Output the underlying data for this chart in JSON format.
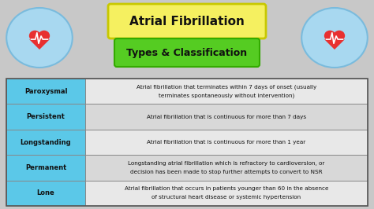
{
  "title": "Atrial Fibrillation",
  "subtitle": "Types & Classification",
  "title_box_color": "#F5F060",
  "title_box_edge": "#C8C800",
  "subtitle_box_color": "#55CC22",
  "subtitle_box_edge": "#33AA00",
  "bg_color": "#C8C8C8",
  "header_col_color": "#5BC8E8",
  "right_col_colors": [
    "#E8E8E8",
    "#D8D8D8",
    "#E8E8E8",
    "#D8D8D8",
    "#E8E8E8"
  ],
  "table_border_color": "#888888",
  "types": [
    "Paroxysmal",
    "Persistent",
    "Longstanding",
    "Permanent",
    "Lone"
  ],
  "descriptions_line1": [
    "Atrial fibrillation that terminates within 7 days of onset (usually",
    "Atrial fibrillation that is continuous for more than 7 days",
    "Atrial fibrillation that is continuous for more than 1 year",
    "Longstanding atrial fibrillation which is refractory to cardioversion, or",
    "Atrial fibrillation that occurs in patients younger than 60 in the absence"
  ],
  "descriptions_line2": [
    "terminates spontaneously without intervention)",
    "",
    "",
    "decision has been made to stop further attempts to convert to NSR",
    "of structural heart disease or systemic hypertension"
  ],
  "icon_ellipse_color": "#A8D8F0",
  "heart_color": "#E83030",
  "heart_inner_color": "#CC1818"
}
